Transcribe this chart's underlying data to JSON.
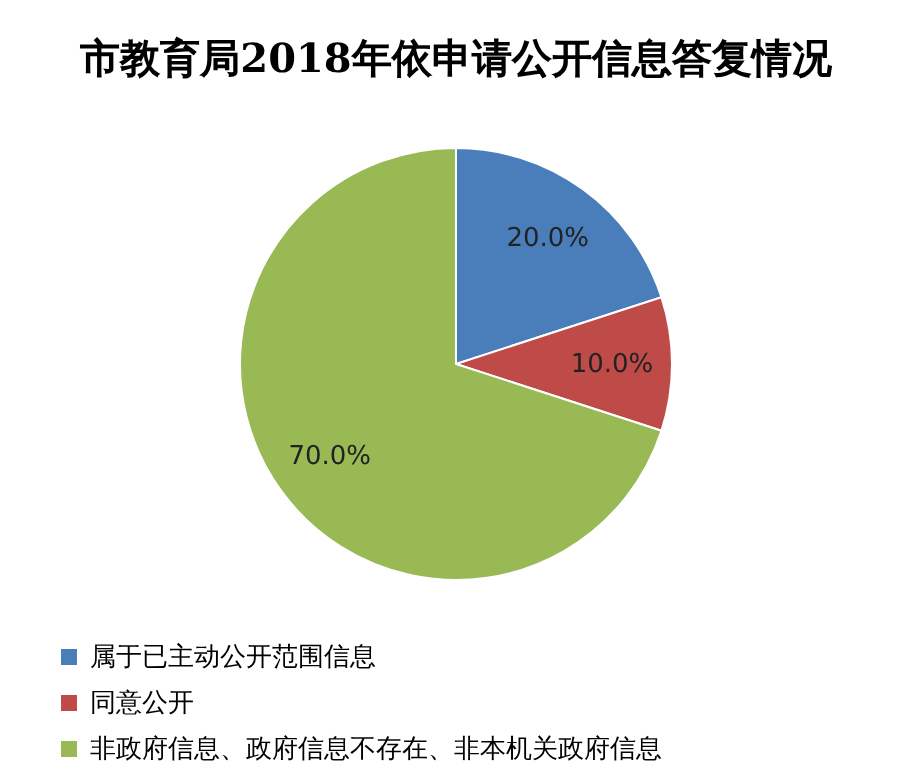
{
  "chart_data": {
    "type": "pie",
    "title": "市教育局2018年依申请公开信息答复情况",
    "categories": [
      "属于已主动公开范围信息",
      "同意公开",
      "非政府信息、政府信息不存在、非本机关政府信息"
    ],
    "values": [
      20,
      10,
      70
    ],
    "colors": [
      "#4a7ebb",
      "#be4b48",
      "#98b954"
    ],
    "value_labels": [
      "20.0%",
      "10.0%",
      "70.0%"
    ],
    "legend": "bottom"
  }
}
